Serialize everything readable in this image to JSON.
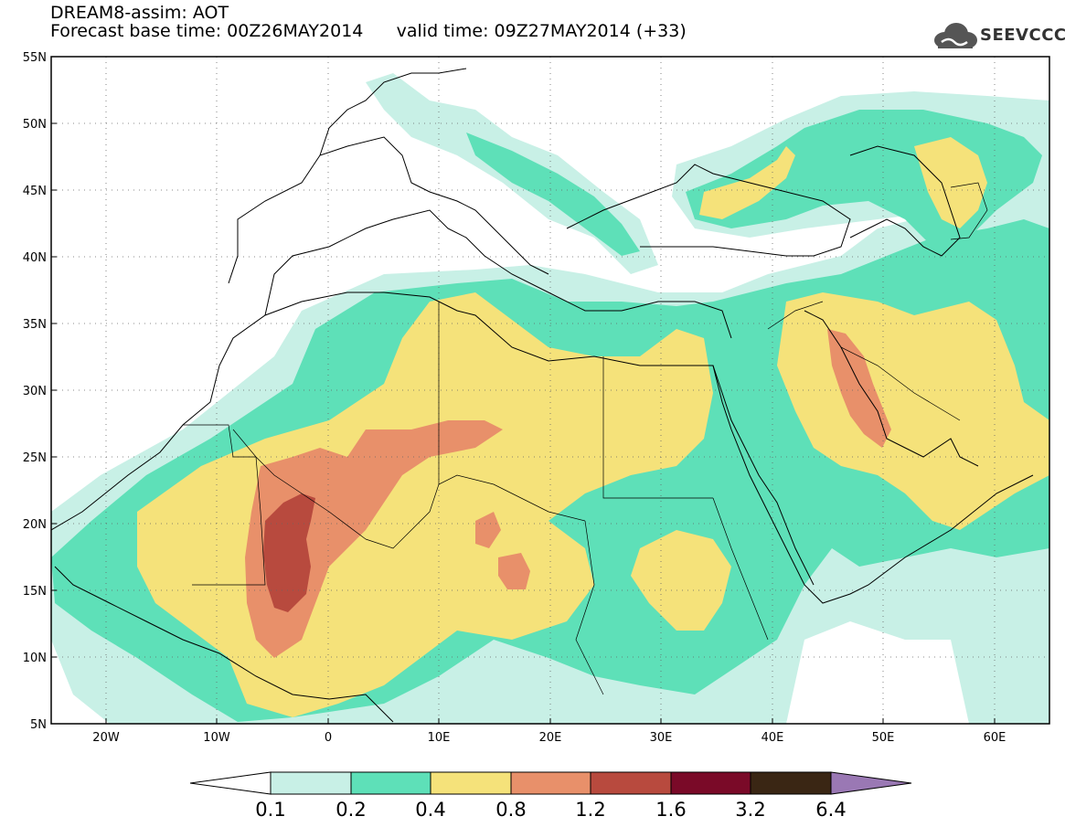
{
  "header": {
    "title": "DREAM8-assim: AOT",
    "base_time": "Forecast base time: 00Z26MAY2014",
    "valid_time": "valid time: 09Z27MAY2014 (+33)"
  },
  "logo": {
    "text": "SEEVCCC",
    "icon": "cloud-icon"
  },
  "map": {
    "lon_range": [
      -25,
      65
    ],
    "lat_range": [
      5,
      55
    ],
    "lat_ticks": [
      "5N",
      "10N",
      "15N",
      "20N",
      "25N",
      "30N",
      "35N",
      "40N",
      "45N",
      "50N",
      "55N"
    ],
    "lon_ticks": [
      "20W",
      "10W",
      "0",
      "10E",
      "20E",
      "30E",
      "40E",
      "50E",
      "60E"
    ],
    "grid": "dotted"
  },
  "colorbar": {
    "labels": [
      "0.1",
      "0.2",
      "0.4",
      "0.8",
      "1.2",
      "1.6",
      "3.2",
      "6.4"
    ],
    "colors": [
      "#ffffff",
      "#c8f0e6",
      "#5ee0b8",
      "#f5e27a",
      "#e8906a",
      "#b84a3e",
      "#7a0a28",
      "#3a2614",
      "#9a78b4"
    ]
  }
}
